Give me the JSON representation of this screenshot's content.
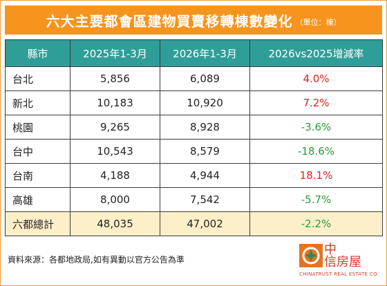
{
  "title": "六大主要都會區建物買賣移轉棟數變化",
  "unit": "（單位：棟）",
  "colors": {
    "header": "#2f9e98",
    "title_bar": "#f7941d",
    "positive": "#e02020",
    "negative": "#2a9a3a",
    "total_row": "#fdefc8"
  },
  "chart_data": {
    "type": "table",
    "columns": [
      "縣市",
      "2025年1-3月",
      "2026年1-3月",
      "2026vs2025增減率"
    ],
    "rows": [
      {
        "region": "台北",
        "y2025": "5,856",
        "y2026": "6,089",
        "rate": "4.0%",
        "sign": "pos"
      },
      {
        "region": "新北",
        "y2025": "10,183",
        "y2026": "10,920",
        "rate": "7.2%",
        "sign": "pos"
      },
      {
        "region": "桃園",
        "y2025": "9,265",
        "y2026": "8,928",
        "rate": "-3.6%",
        "sign": "neg"
      },
      {
        "region": "台中",
        "y2025": "10,543",
        "y2026": "8,579",
        "rate": "-18.6%",
        "sign": "neg"
      },
      {
        "region": "台南",
        "y2025": "4,188",
        "y2026": "4,944",
        "rate": "18.1%",
        "sign": "pos"
      },
      {
        "region": "高雄",
        "y2025": "8,000",
        "y2026": "7,542",
        "rate": "-5.7%",
        "sign": "neg"
      }
    ],
    "total": {
      "region": "六都總計",
      "y2025": "48,035",
      "y2026": "47,002",
      "rate": "-2.2%",
      "sign": "neg"
    }
  },
  "footer": {
    "source": "資料來源：各都地政局,如有異動以官方公告為準"
  },
  "logo": {
    "line1": "中",
    "line2": "信房屋",
    "en": "CHINATRUST REAL ESTATE CO.",
    "icon": "chinatrust-logo-icon"
  }
}
